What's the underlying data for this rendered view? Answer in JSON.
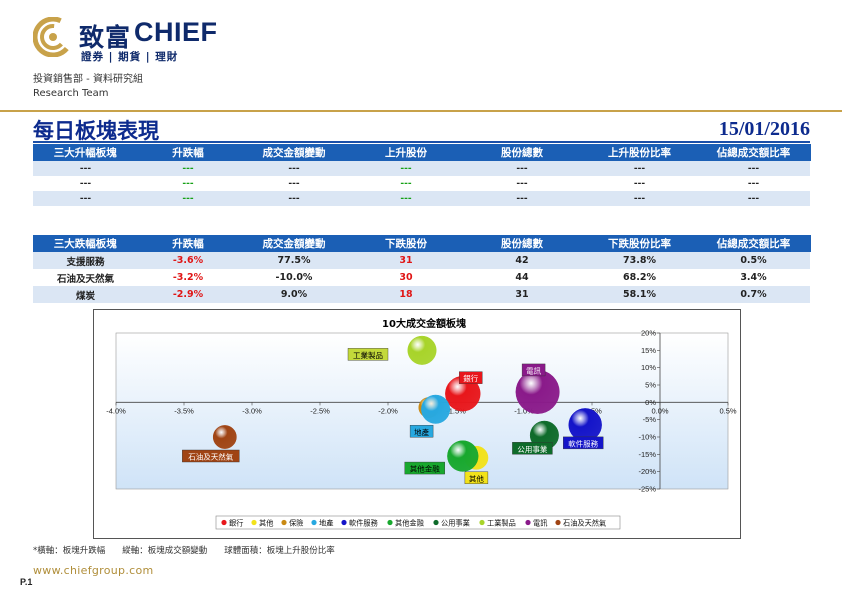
{
  "brand": {
    "name_cn": "致富",
    "name_en": "CHIEF",
    "tagline": "證券 | 期貨 | 理財",
    "colors": {
      "navy": "#0f2a6b",
      "gold": "#c8a24a"
    }
  },
  "department": {
    "cn": "投資銷售部 - 資料研究組",
    "en": "Research Team"
  },
  "header": {
    "title": "每日板塊表現",
    "date": "15/01/2016"
  },
  "top_gainers": {
    "headers": [
      "三大升幅板塊",
      "升跌幅",
      "成交金額變動",
      "上升股份",
      "股份總數",
      "上升股份比率",
      "佔總成交額比率"
    ],
    "rows": [
      [
        "---",
        "---",
        "---",
        "---",
        "---",
        "---",
        "---"
      ],
      [
        "---",
        "---",
        "---",
        "---",
        "---",
        "---",
        "---"
      ],
      [
        "---",
        "---",
        "---",
        "---",
        "---",
        "---",
        "---"
      ]
    ]
  },
  "top_losers": {
    "headers": [
      "三大跌幅板塊",
      "升跌幅",
      "成交金額變動",
      "下跌股份",
      "股份總數",
      "下跌股份比率",
      "佔總成交額比率"
    ],
    "rows": [
      [
        "支援服務",
        "-3.6%",
        "77.5%",
        "31",
        "42",
        "73.8%",
        "0.5%"
      ],
      [
        "石油及天然氣",
        "-3.2%",
        "-10.0%",
        "30",
        "44",
        "68.2%",
        "3.4%"
      ],
      [
        "煤炭",
        "-2.9%",
        "9.0%",
        "18",
        "31",
        "58.1%",
        "0.7%"
      ]
    ]
  },
  "chart_data": {
    "type": "bubble",
    "title": "10大成交金額板塊",
    "xlabel": "",
    "ylabel": "",
    "xlim": [
      -4.0,
      0.5
    ],
    "ylim": [
      -25,
      20
    ],
    "x_ticks": [
      "-4.0%",
      "-3.5%",
      "-3.0%",
      "-2.5%",
      "-2.0%",
      "-1.5%",
      "-1.0%",
      "-0.5%",
      "0.0%",
      "0.5%"
    ],
    "y_ticks": [
      "20%",
      "15%",
      "10%",
      "5%",
      "0%",
      "-5%",
      "-10%",
      "-15%",
      "-20%",
      "-25%"
    ],
    "legend_position": "bottom",
    "series": [
      {
        "name": "銀行",
        "x": -1.45,
        "y": 2.5,
        "size": 45,
        "color": "#e8161b",
        "label_bg": "#e8161b",
        "label_fg": "#ffffff"
      },
      {
        "name": "其他",
        "x": -1.35,
        "y": -16.0,
        "size": 20,
        "color": "#f2e21a",
        "label_bg": "#f2e21a",
        "label_fg": "#000000"
      },
      {
        "name": "保險",
        "x": -1.7,
        "y": -1.5,
        "size": 15,
        "color": "#c98a14",
        "label_bg": "#c98a14",
        "label_fg": "#000000"
      },
      {
        "name": "地產",
        "x": -1.65,
        "y": -2.0,
        "size": 30,
        "color": "#27a8e0",
        "label_bg": "#27a8e0",
        "label_fg": "#000000"
      },
      {
        "name": "軟件服務",
        "x": -0.55,
        "y": -6.5,
        "size": 40,
        "color": "#1414c9",
        "label_bg": "#1414c9",
        "label_fg": "#ffffff"
      },
      {
        "name": "其他金融",
        "x": -1.45,
        "y": -15.5,
        "size": 35,
        "color": "#18a82e",
        "label_bg": "#18a82e",
        "label_fg": "#000000"
      },
      {
        "name": "公用事業",
        "x": -0.85,
        "y": -9.5,
        "size": 30,
        "color": "#0e6b2a",
        "label_bg": "#0e6b2a",
        "label_fg": "#ffffff"
      },
      {
        "name": "工業製品",
        "x": -1.75,
        "y": 15.0,
        "size": 30,
        "color": "#a8d42a",
        "label_bg": "#c3d93a",
        "label_fg": "#000000"
      },
      {
        "name": "電訊",
        "x": -0.9,
        "y": 3.0,
        "size": 70,
        "color": "#8a1a8a",
        "label_bg": "#8a1a8a",
        "label_fg": "#ffffff"
      },
      {
        "name": "石油及天然氣",
        "x": -3.2,
        "y": -10.0,
        "size": 20,
        "color": "#a04414",
        "label_bg": "#a04414",
        "label_fg": "#ffffff"
      }
    ]
  },
  "footer": {
    "note": "*橫軸：板塊升跌幅　　縱軸：板塊成交額變動　　球體面積：板塊上升股份比率",
    "website": "www.chiefgroup.com",
    "page": "P.1"
  }
}
